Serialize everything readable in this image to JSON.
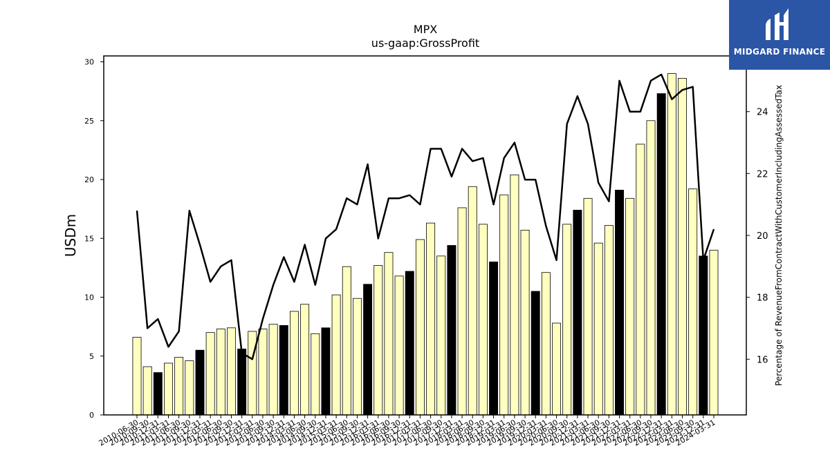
{
  "logo": {
    "text": "MIDGARD FINANCE",
    "background": "#2b55a5"
  },
  "chart_data": {
    "type": "bar",
    "title": "MPX",
    "subtitle": "us-gaap:GrossProfit",
    "ylabel": "USDm",
    "y2label": "Percentage of RevenueFromContractWithCustomerIncludingAssessedTax",
    "ylim": [
      0,
      30.5
    ],
    "y2lim": [
      14.2,
      25.8
    ],
    "yticks": [
      0,
      5,
      10,
      15,
      20,
      25,
      30
    ],
    "y2ticks": [
      16,
      18,
      20,
      22,
      24
    ],
    "grid": false,
    "categories": [
      "2010-06-30",
      "2010-09-30",
      "2010-12-31",
      "2011-03-31",
      "2011-06-30",
      "2011-09-30",
      "2011-12-31",
      "2012-03-31",
      "2012-06-30",
      "2012-09-30",
      "2012-12-31",
      "2013-03-31",
      "2013-06-30",
      "2013-09-30",
      "2013-12-31",
      "2014-03-31",
      "2014-06-30",
      "2014-09-30",
      "2014-12-31",
      "2015-03-31",
      "2015-06-30",
      "2015-09-30",
      "2015-12-31",
      "2016-03-31",
      "2016-06-30",
      "2016-09-30",
      "2016-12-31",
      "2017-03-31",
      "2017-06-30",
      "2017-09-30",
      "2017-12-31",
      "2018-03-31",
      "2018-06-30",
      "2018-09-30",
      "2018-12-31",
      "2019-03-31",
      "2019-06-30",
      "2019-09-30",
      "2019-12-31",
      "2020-03-31",
      "2020-06-30",
      "2020-09-30",
      "2020-12-31",
      "2021-03-31",
      "2021-06-30",
      "2021-09-30",
      "2021-12-31",
      "2022-03-31",
      "2022-06-30",
      "2022-09-30",
      "2022-12-31",
      "2023-03-31",
      "2023-06-30",
      "2023-09-30",
      "2023-12-31",
      "2024-03-31"
    ],
    "series": [
      {
        "kind": "bar",
        "values": [
          6.6,
          4.1,
          3.6,
          4.4,
          4.9,
          4.6,
          5.5,
          7.0,
          7.3,
          7.4,
          5.6,
          7.1,
          7.3,
          7.7,
          7.6,
          8.8,
          9.4,
          6.9,
          7.4,
          10.2,
          12.6,
          9.9,
          11.1,
          12.7,
          13.8,
          11.8,
          12.2,
          14.9,
          16.3,
          13.5,
          14.4,
          17.6,
          19.4,
          16.2,
          13.0,
          18.7,
          20.4,
          15.7,
          10.5,
          12.1,
          7.8,
          16.2,
          17.4,
          18.4,
          14.6,
          16.1,
          19.1,
          18.4,
          23.0,
          25.0,
          27.3,
          29.0,
          28.6,
          19.2,
          13.5,
          14.0
        ],
        "colors": [
          "#ffffc0",
          "#ffffc0",
          "#000000",
          "#ffffc0",
          "#ffffc0",
          "#ffffc0",
          "#000000",
          "#ffffc0",
          "#ffffc0",
          "#ffffc0",
          "#000000",
          "#ffffc0",
          "#ffffc0",
          "#ffffc0",
          "#000000",
          "#ffffc0",
          "#ffffc0",
          "#ffffc0",
          "#000000",
          "#ffffc0",
          "#ffffc0",
          "#ffffc0",
          "#000000",
          "#ffffc0",
          "#ffffc0",
          "#ffffc0",
          "#000000",
          "#ffffc0",
          "#ffffc0",
          "#ffffc0",
          "#000000",
          "#ffffc0",
          "#ffffc0",
          "#ffffc0",
          "#000000",
          "#ffffc0",
          "#ffffc0",
          "#ffffc0",
          "#000000",
          "#ffffc0",
          "#ffffc0",
          "#ffffc0",
          "#000000",
          "#ffffc0",
          "#ffffc0",
          "#ffffc0",
          "#000000",
          "#ffffc0",
          "#ffffc0",
          "#ffffc0",
          "#000000",
          "#ffffc0",
          "#ffffc0",
          "#ffffc0",
          "#000000",
          "#ffffc0"
        ]
      },
      {
        "kind": "line",
        "axis": "right",
        "color": "#000000",
        "values": [
          20.8,
          17.0,
          17.3,
          16.4,
          16.9,
          20.8,
          19.7,
          18.5,
          19.0,
          19.2,
          16.2,
          16.0,
          17.3,
          18.4,
          19.3,
          18.5,
          19.7,
          18.4,
          19.9,
          20.2,
          21.2,
          21.0,
          22.3,
          19.9,
          21.2,
          21.2,
          21.3,
          21.0,
          22.8,
          22.8,
          21.9,
          22.8,
          22.4,
          22.5,
          21.0,
          22.5,
          23.0,
          21.8,
          21.8,
          20.3,
          19.2,
          23.6,
          24.5,
          23.6,
          21.7,
          21.1,
          25.0,
          24.0,
          24.0,
          25.0,
          25.2,
          24.4,
          24.7,
          24.8,
          19.2,
          20.2
        ]
      }
    ]
  }
}
